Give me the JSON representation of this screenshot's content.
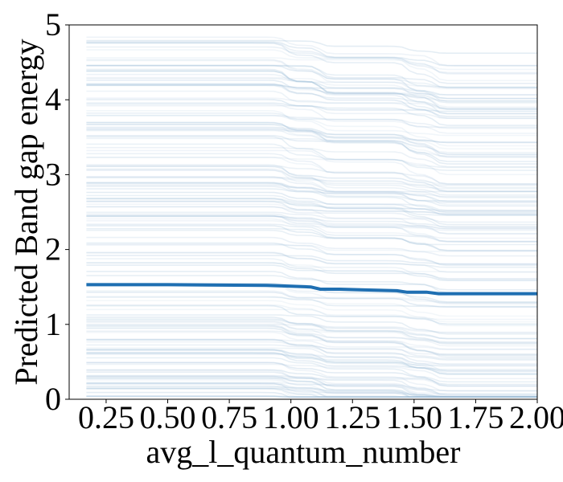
{
  "chart_data": {
    "type": "line",
    "title": "",
    "xlabel": "avg_l_quantum_number",
    "ylabel": "Predicted Band gap energy",
    "xlim": [
      0.1,
      2.0
    ],
    "ylim": [
      0,
      5
    ],
    "x_ticks": [
      0.25,
      0.5,
      0.75,
      1.0,
      1.25,
      1.5,
      1.75,
      2.0
    ],
    "x_tick_labels": [
      "0.25",
      "0.50",
      "0.75",
      "1.00",
      "1.25",
      "1.50",
      "1.75",
      "2.00"
    ],
    "y_ticks": [
      0,
      1,
      2,
      3,
      4,
      5
    ],
    "y_tick_labels": [
      "0",
      "1",
      "2",
      "3",
      "4",
      "5"
    ],
    "grid": false,
    "legend": "none",
    "colors": {
      "individual_lines": "#9fbfd9",
      "average_line": "#1f6fb2"
    },
    "average_series": {
      "x": [
        0.17,
        0.5,
        0.9,
        1.0,
        1.08,
        1.12,
        1.2,
        1.3,
        1.43,
        1.47,
        1.55,
        1.6,
        1.7,
        2.0
      ],
      "y": [
        1.53,
        1.53,
        1.52,
        1.51,
        1.5,
        1.47,
        1.47,
        1.46,
        1.45,
        1.43,
        1.43,
        1.41,
        1.41,
        1.41
      ]
    },
    "individual_range": {
      "x_min": 0.17,
      "x_max": 2.0,
      "y_min": 0.03,
      "y_max": 4.95,
      "step_positions": [
        0.98,
        1.12,
        1.47,
        1.58
      ]
    }
  }
}
